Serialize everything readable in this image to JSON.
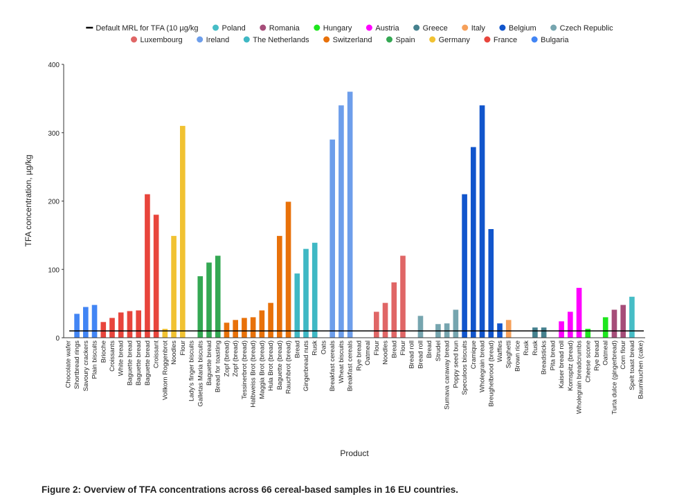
{
  "chart_data": {
    "type": "bar",
    "y_label": "TFA concentration, µg/kg",
    "x_label": "Product",
    "caption": "Figure 2: Overview of TFA concentrations across 66 cereal-based samples in 16 EU countries.",
    "ylim": [
      0,
      400
    ],
    "yticks": [
      0,
      100,
      200,
      300,
      400
    ],
    "reference_line": {
      "name": "Default MRL for TFA (10 µg/kg",
      "value": 10,
      "color": "#000000"
    },
    "series": [
      {
        "name": "Poland",
        "color": "#46bdc6",
        "categories": [
          "Spelt toast bread",
          "Baumkuchen (cake)"
        ],
        "values": [
          60,
          0
        ]
      },
      {
        "name": "Romania",
        "color": "#a64d79",
        "categories": [
          "Turta dulce (gingerbread)",
          "Corn flour"
        ],
        "values": [
          41,
          48
        ]
      },
      {
        "name": "Hungary",
        "color": "#1ee61e",
        "categories": [
          "Cheese scone",
          "Rye bread",
          "Oatmeal"
        ],
        "values": [
          13,
          0,
          30
        ]
      },
      {
        "name": "Austria",
        "color": "#ff00ff",
        "categories": [
          "Kaiser bread roll",
          "Kornspitz (bread)",
          "Wholegrain breadcrumbs"
        ],
        "values": [
          24,
          38,
          73
        ]
      },
      {
        "name": "Greece",
        "color": "#45818e",
        "categories": [
          "Rusk",
          "Rusk",
          "Breadsticks",
          "Pita bread"
        ],
        "values": [
          0,
          15,
          15,
          0
        ]
      },
      {
        "name": "Italy",
        "color": "#f6a05a",
        "categories": [
          "Spaghetti",
          "Brown rice"
        ],
        "values": [
          26,
          0
        ]
      },
      {
        "name": "Belgium",
        "color": "#1155cc",
        "categories": [
          "Speculoos biscuits",
          "Cramique",
          "Wholegrain bread",
          "Breughelbrood (bread)",
          "Waffles"
        ],
        "values": [
          210,
          279,
          340,
          159,
          21
        ]
      },
      {
        "name": "Czech Republic",
        "color": "#76a5af",
        "categories": [
          "Bread roll",
          "Bread roll",
          "Bread",
          "Strudel",
          "Sumava caraway bread",
          "Poppy seed bun"
        ],
        "values": [
          0,
          32,
          0,
          20,
          21,
          41
        ]
      },
      {
        "name": "Luxembourg",
        "color": "#e06666",
        "categories": [
          "Oatmeal",
          "Flour",
          "Noodles",
          "Bread",
          "Flour"
        ],
        "values": [
          0,
          38,
          51,
          81,
          120
        ]
      },
      {
        "name": "Ireland",
        "color": "#6d9eeb",
        "categories": [
          "Breakfast cereals",
          "Wheat biscuits",
          "Breakfast cereals",
          "Rye bread"
        ],
        "values": [
          290,
          340,
          360,
          0
        ]
      },
      {
        "name": "The Netherlands",
        "color": "#3fb8c4",
        "categories": [
          "Bread",
          "Gingerbread nuts",
          "Rusk",
          "Oats"
        ],
        "values": [
          94,
          130,
          139,
          0
        ]
      },
      {
        "name": "Switzerland",
        "color": "#e8710a",
        "categories": [
          "Zopf (bread)",
          "Zopf (bread)",
          "Tessinerbrot (bread)",
          "Halbweiss Brot (bread)",
          "Maggia Brot (bread)",
          "Hula Brot (bread)",
          "Baguette (bread)",
          "Rauchbrot (bread)"
        ],
        "values": [
          22,
          26,
          29,
          30,
          40,
          51,
          149,
          199
        ]
      },
      {
        "name": "Spain",
        "color": "#34a853",
        "categories": [
          "Lady's finger biscuits",
          "Galletas Maria biscuits",
          "Baguette bread",
          "Bread for toasting"
        ],
        "values": [
          0,
          90,
          110,
          120
        ]
      },
      {
        "name": "Germany",
        "color": "#f1c232",
        "categories": [
          "Vollkorn Roggenbrot",
          "Noodles",
          "Flour"
        ],
        "values": [
          13,
          149,
          310
        ]
      },
      {
        "name": "France",
        "color": "#e8453c",
        "categories": [
          "Brioche",
          "Croissants",
          "White bread",
          "Baguette bread",
          "Baguette bread",
          "Baguette bread",
          "Croissant"
        ],
        "values": [
          23,
          29,
          37,
          39,
          40,
          210,
          180
        ]
      },
      {
        "name": "Bulgaria",
        "color": "#4285f4",
        "categories": [
          "Chocolate wafer",
          "Shortbread rings",
          "Savoury crackers",
          "Plain biscuits"
        ],
        "values": [
          0,
          35,
          45,
          48
        ]
      }
    ]
  }
}
